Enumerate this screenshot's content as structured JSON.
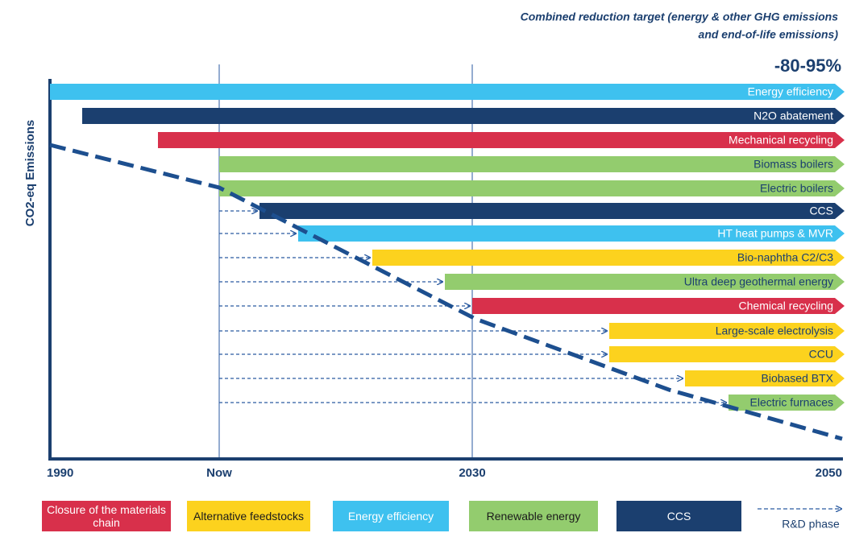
{
  "header": {
    "title_lines": [
      "Combined reduction target  (energy & other GHG emissions",
      "and end-of-life emissions)"
    ],
    "target": "-80-95%"
  },
  "y_axis_label": "CO2-eq Emissions",
  "time_axis": [
    "1990",
    "Now",
    "2030",
    "2050"
  ],
  "measures": [
    {
      "label": "Energy efficiency",
      "color": "#3ec1ef"
    },
    {
      "label": "N2O abatement",
      "color": "#1b3f6f"
    },
    {
      "label": "Mechanical recycling",
      "color": "#d8304b"
    },
    {
      "label": "Biomass boilers",
      "color": "#93cc6e"
    },
    {
      "label": "Electric boilers",
      "color": "#93cc6e"
    },
    {
      "label": "CCS",
      "color": "#1b3f6f"
    },
    {
      "label": "HT heat pumps & MVR",
      "color": "#3ec1ef"
    },
    {
      "label": "Bio-naphtha C2/C3",
      "color": "#fcd21e"
    },
    {
      "label": "Ultra deep geothermal energy",
      "color": "#93cc6e"
    },
    {
      "label": "Chemical recycling",
      "color": "#d8304b"
    },
    {
      "label": "Large-scale electrolysis",
      "color": "#fcd21e"
    },
    {
      "label": "CCU",
      "color": "#fcd21e"
    },
    {
      "label": "Biobased BTX",
      "color": "#fcd21e"
    },
    {
      "label": "Electric furnaces",
      "color": "#93cc6e"
    }
  ],
  "legend": [
    {
      "label": "Closure of the materials chain",
      "color": "#d8304b"
    },
    {
      "label": "Alternative feedstocks",
      "color": "#fcd21e"
    },
    {
      "label": "Energy efficiency",
      "color": "#3ec1ef"
    },
    {
      "label": "Renewable energy",
      "color": "#93cc6e"
    },
    {
      "label": "CCS",
      "color": "#1b3f6f"
    }
  ],
  "rd_phase_label": "R&D phase"
}
